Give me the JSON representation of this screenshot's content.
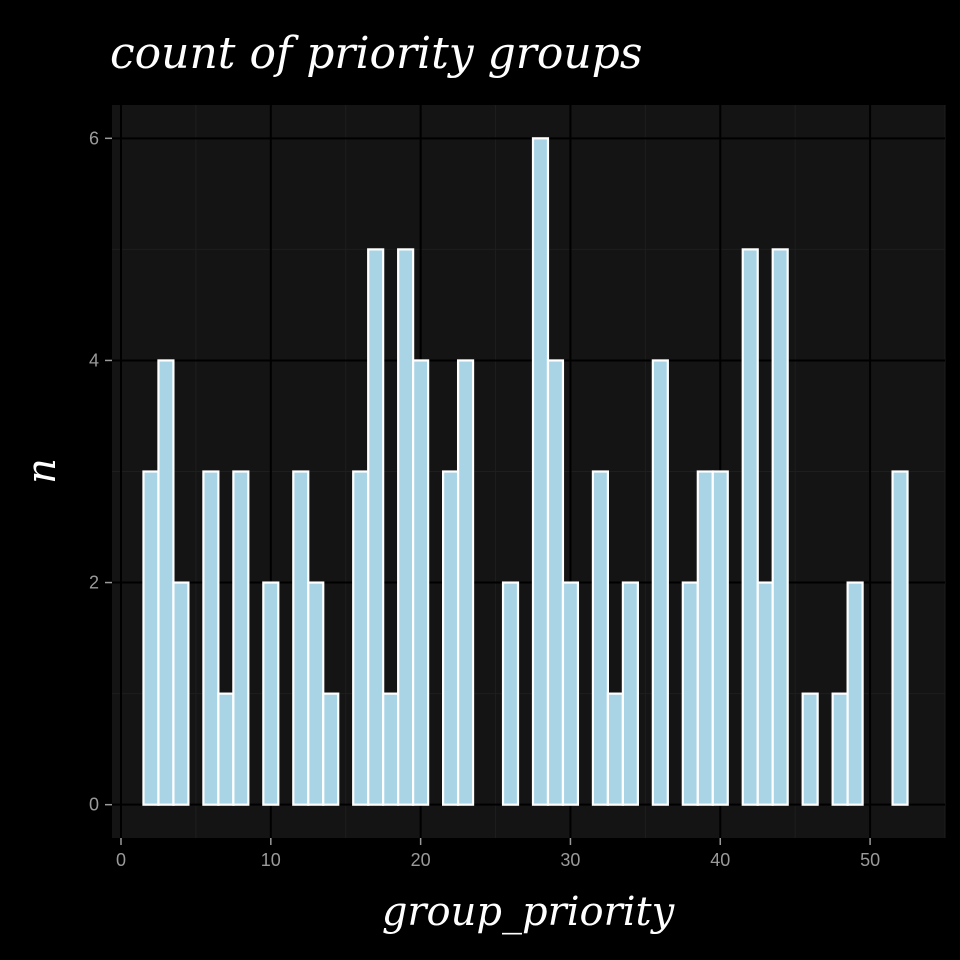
{
  "chart_data": {
    "type": "bar",
    "title": "count of priority groups",
    "xlabel": "group_priority",
    "ylabel": "n",
    "x": [
      2,
      3,
      4,
      6,
      7,
      8,
      10,
      12,
      13,
      14,
      16,
      17,
      18,
      19,
      20,
      22,
      23,
      26,
      28,
      29,
      30,
      32,
      33,
      34,
      36,
      38,
      39,
      40,
      42,
      43,
      44,
      46,
      48,
      49,
      52
    ],
    "values": [
      3,
      4,
      2,
      3,
      1,
      3,
      2,
      3,
      2,
      1,
      3,
      5,
      1,
      5,
      4,
      3,
      4,
      2,
      6,
      4,
      2,
      3,
      1,
      2,
      4,
      2,
      3,
      3,
      5,
      2,
      5,
      1,
      1,
      2,
      3
    ],
    "xlim": [
      -0.6,
      55
    ],
    "ylim": [
      -0.3,
      6.3
    ],
    "x_ticks": [
      0,
      10,
      20,
      30,
      40,
      50
    ],
    "x_tick_labels": [
      "0",
      "10",
      "20",
      "30",
      "40",
      "50"
    ],
    "y_ticks": [
      0,
      2,
      4,
      6
    ],
    "y_tick_labels": [
      "0",
      "2",
      "4",
      "6"
    ],
    "grid": true,
    "legend": "none",
    "colors": {
      "background": "#000000",
      "panel": "#141414",
      "grid_major": "#000000",
      "grid_minor": "#1e1e1e",
      "bar_fill": "#a8d4e6",
      "bar_stroke": "#ffffff",
      "tick_text": "#9a9a9a",
      "title_text": "#ffffff"
    }
  }
}
